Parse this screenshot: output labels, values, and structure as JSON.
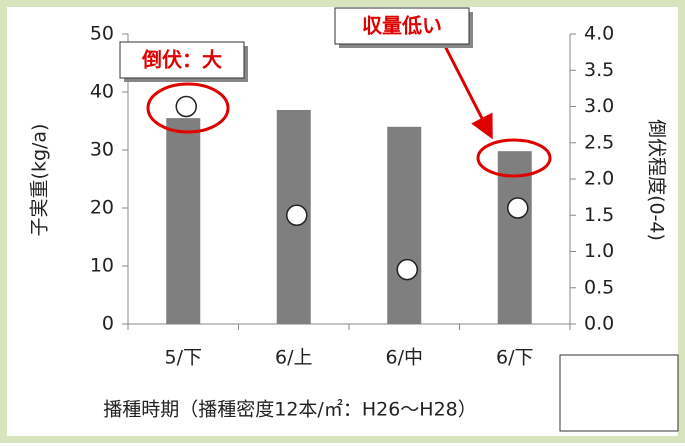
{
  "chart_data": {
    "type": "bar",
    "categories": [
      "5/下",
      "6/上",
      "6/中",
      "6/下"
    ],
    "series": [
      {
        "name": "子実重",
        "type": "bar",
        "color": "#7f7f7f",
        "values": [
          35.5,
          36.9,
          34.0,
          29.8
        ]
      },
      {
        "name": "倒伏程度",
        "type": "scatter",
        "axis": "y2",
        "color": "#ffffff",
        "values": [
          3.0,
          1.5,
          0.75,
          1.6
        ]
      }
    ],
    "ylim": [
      0,
      50
    ],
    "yticks": [
      0,
      10,
      20,
      30,
      40,
      50
    ],
    "y2lim": [
      0,
      4
    ],
    "y2ticks": [
      {
        "value": 0,
        "label": "0.0"
      },
      0.5,
      {
        "value": 1,
        "label": "1.0"
      },
      1.5,
      {
        "value": 2,
        "label": "2.0"
      },
      2.5,
      {
        "value": 3,
        "label": "3.0"
      },
      3.5,
      {
        "value": 4,
        "label": "4.0"
      }
    ],
    "ylabel": "子実重(kg/a)",
    "y2label": "倒伏程度(0-4)",
    "xlabel": "播種時期（播種密度12本/㎡：H26～H28）",
    "annotations": [
      "倒伏：大",
      "収量低い"
    ],
    "legend": "bottom-right"
  }
}
